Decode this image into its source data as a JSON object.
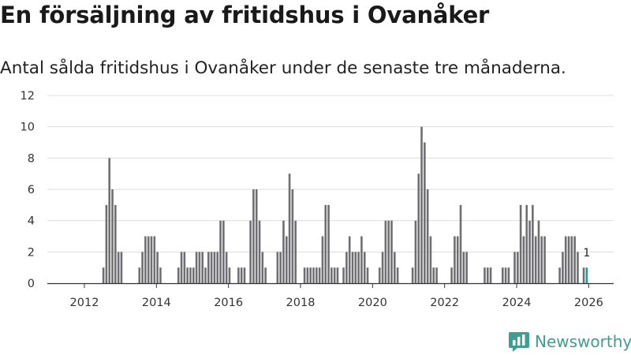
{
  "title": "En försäljning av fritidshus i Ovanåker",
  "subtitle": "Antal sålda fritidshus i Ovanåker under de senaste tre månaderna.",
  "brand": {
    "name": "Newsworthy"
  },
  "colors": {
    "bar": "#6e6e73",
    "highlight": "#1f9e8e",
    "grid": "#dddddd",
    "axis": "#333333",
    "brand": "#3e9e92"
  },
  "chart_data": {
    "type": "bar",
    "title": "En försäljning av fritidshus i Ovanåker",
    "subtitle": "Antal sålda fritidshus i Ovanåker under de senaste tre månaderna.",
    "xlabel": "",
    "ylabel": "",
    "ylim": [
      0,
      12
    ],
    "yticks": [
      0,
      2,
      4,
      6,
      8,
      10,
      12
    ],
    "xticks": [
      "2012",
      "2014",
      "2016",
      "2018",
      "2020",
      "2022",
      "2024",
      "2026"
    ],
    "grid": true,
    "start_month": "2011-01",
    "interval": "monthly, rolling 3-month count",
    "values": [
      0,
      0,
      0,
      0,
      0,
      0,
      0,
      0,
      0,
      0,
      0,
      0,
      0,
      0,
      0,
      0,
      0,
      0,
      1,
      5,
      8,
      6,
      5,
      2,
      2,
      0,
      0,
      0,
      0,
      0,
      1,
      2,
      3,
      3,
      3,
      3,
      2,
      1,
      0,
      0,
      0,
      0,
      0,
      1,
      2,
      2,
      1,
      1,
      1,
      2,
      2,
      2,
      1,
      2,
      2,
      2,
      2,
      4,
      4,
      2,
      1,
      0,
      0,
      1,
      1,
      1,
      0,
      4,
      6,
      6,
      4,
      2,
      1,
      0,
      0,
      0,
      2,
      2,
      4,
      3,
      7,
      6,
      4,
      0,
      0,
      1,
      1,
      1,
      1,
      1,
      1,
      3,
      5,
      5,
      1,
      1,
      1,
      0,
      1,
      2,
      3,
      2,
      2,
      2,
      3,
      2,
      1,
      0,
      0,
      0,
      1,
      2,
      4,
      4,
      4,
      2,
      1,
      0,
      0,
      0,
      0,
      1,
      4,
      7,
      10,
      9,
      6,
      3,
      1,
      1,
      0,
      0,
      0,
      0,
      1,
      3,
      3,
      5,
      2,
      2,
      0,
      0,
      0,
      0,
      0,
      1,
      1,
      1,
      0,
      0,
      0,
      1,
      1,
      1,
      0,
      2,
      2,
      5,
      3,
      5,
      4,
      5,
      3,
      4,
      3,
      3,
      0,
      0,
      0,
      0,
      1,
      2,
      3,
      3,
      3,
      3,
      2,
      0,
      1,
      1
    ],
    "last_value_label": "1"
  }
}
